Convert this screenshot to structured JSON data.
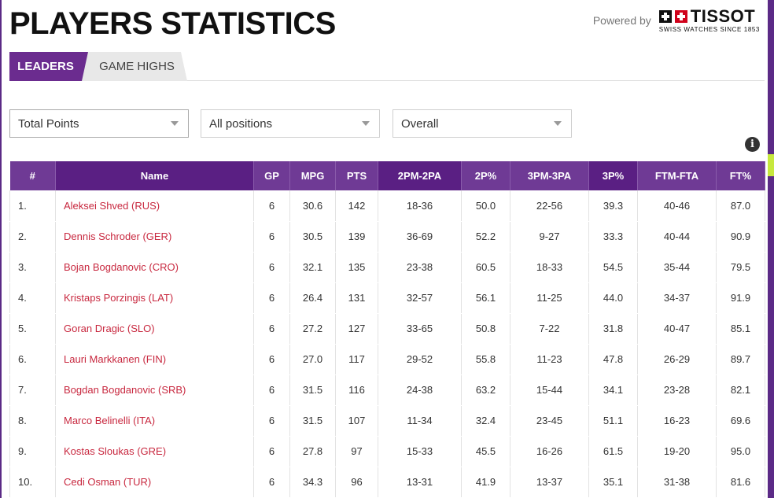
{
  "header": {
    "title": "PLAYERS STATISTICS",
    "powered_label": "Powered by",
    "brand_name": "TISSOT",
    "brand_tagline": "SWISS WATCHES SINCE 1853"
  },
  "tabs": [
    {
      "label": "LEADERS",
      "active": true
    },
    {
      "label": "GAME HIGHS",
      "active": false
    }
  ],
  "filters": {
    "stat": "Total Points",
    "position": "All positions",
    "scope": "Overall"
  },
  "colors": {
    "accent": "#6b2c8f",
    "accent_dark": "#5a1f83",
    "link": "#c8283f",
    "lime": "#c7e83d"
  },
  "table": {
    "columns": [
      "#",
      "Name",
      "GP",
      "MPG",
      "PTS",
      "2PM-2PA",
      "2P%",
      "3PM-3PA",
      "3P%",
      "FTM-FTA",
      "FT%"
    ],
    "rows": [
      [
        "1.",
        "Aleksei Shved (RUS)",
        "6",
        "30.6",
        "142",
        "18-36",
        "50.0",
        "22-56",
        "39.3",
        "40-46",
        "87.0"
      ],
      [
        "2.",
        "Dennis Schroder (GER)",
        "6",
        "30.5",
        "139",
        "36-69",
        "52.2",
        "9-27",
        "33.3",
        "40-44",
        "90.9"
      ],
      [
        "3.",
        "Bojan Bogdanovic (CRO)",
        "6",
        "32.1",
        "135",
        "23-38",
        "60.5",
        "18-33",
        "54.5",
        "35-44",
        "79.5"
      ],
      [
        "4.",
        "Kristaps Porzingis (LAT)",
        "6",
        "26.4",
        "131",
        "32-57",
        "56.1",
        "11-25",
        "44.0",
        "34-37",
        "91.9"
      ],
      [
        "5.",
        "Goran Dragic (SLO)",
        "6",
        "27.2",
        "127",
        "33-65",
        "50.8",
        "7-22",
        "31.8",
        "40-47",
        "85.1"
      ],
      [
        "6.",
        "Lauri Markkanen (FIN)",
        "6",
        "27.0",
        "117",
        "29-52",
        "55.8",
        "11-23",
        "47.8",
        "26-29",
        "89.7"
      ],
      [
        "7.",
        "Bogdan Bogdanovic (SRB)",
        "6",
        "31.5",
        "116",
        "24-38",
        "63.2",
        "15-44",
        "34.1",
        "23-28",
        "82.1"
      ],
      [
        "8.",
        "Marco Belinelli (ITA)",
        "6",
        "31.5",
        "107",
        "11-34",
        "32.4",
        "23-45",
        "51.1",
        "16-23",
        "69.6"
      ],
      [
        "9.",
        "Kostas Sloukas (GRE)",
        "6",
        "27.8",
        "97",
        "15-33",
        "45.5",
        "16-26",
        "61.5",
        "19-20",
        "95.0"
      ],
      [
        "10.",
        "Cedi Osman (TUR)",
        "6",
        "34.3",
        "96",
        "13-31",
        "41.9",
        "13-37",
        "35.1",
        "31-38",
        "81.6"
      ]
    ]
  }
}
